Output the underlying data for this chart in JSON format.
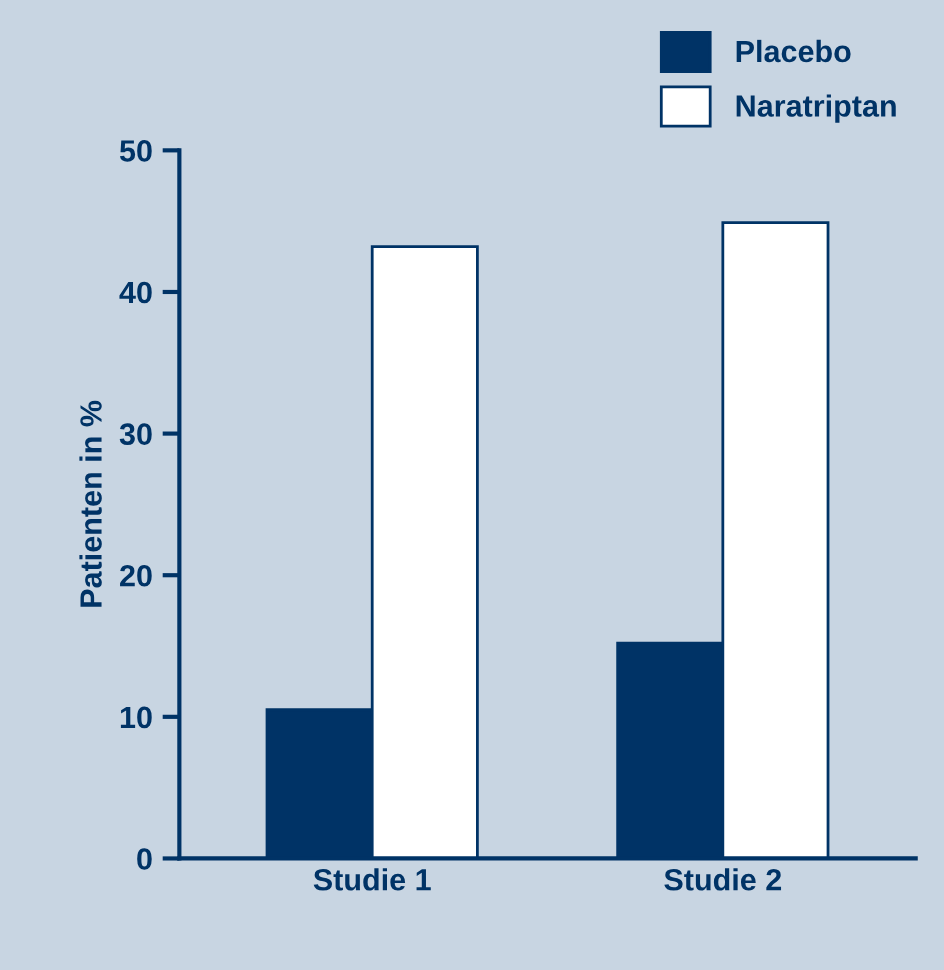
{
  "chart_data": {
    "type": "bar",
    "ylabel": "Patienten in %",
    "categories": [
      "Studie 1",
      "Studie 2"
    ],
    "series": [
      {
        "name": "Placebo",
        "color": "#003366",
        "values": [
          10.5,
          15.2
        ]
      },
      {
        "name": "Naratriptan",
        "color": "#ffffff",
        "values": [
          43.2,
          44.9
        ]
      }
    ],
    "ylim": [
      0,
      50
    ],
    "yticks": [
      0,
      10,
      20,
      30,
      40,
      50
    ],
    "grid": false,
    "legend": "top right"
  }
}
